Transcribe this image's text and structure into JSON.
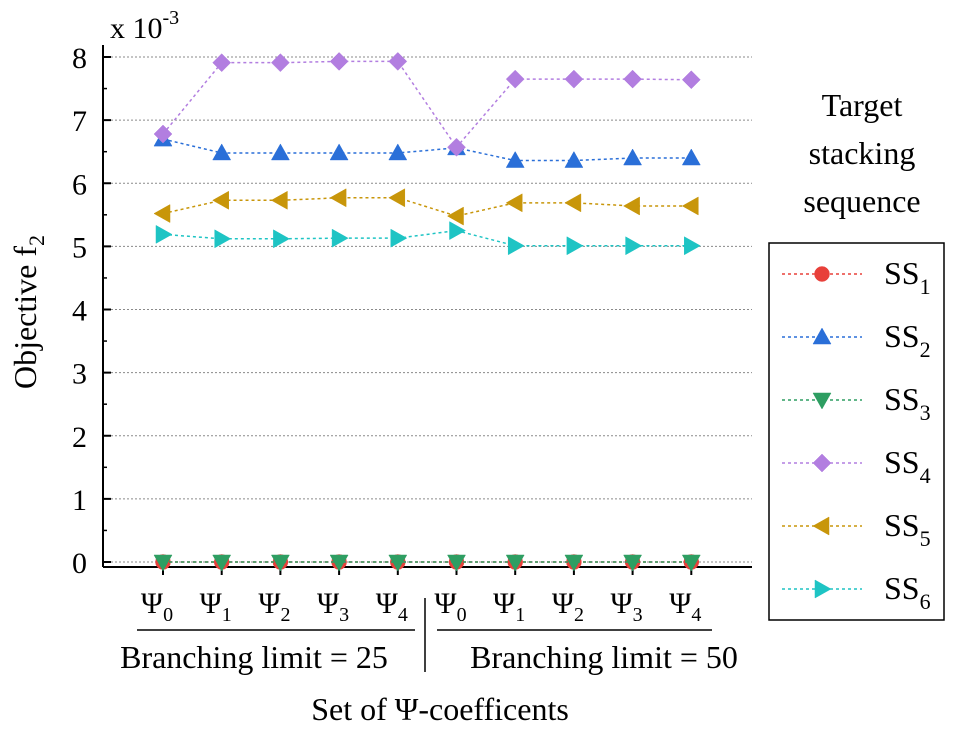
{
  "chart_data": {
    "type": "line",
    "scale_label": "x 10",
    "scale_exponent": "-3",
    "xlabel": "Set of Ψ-coefficents",
    "ylabel_main": "Objective f",
    "ylabel_sub": "2",
    "ylim": [
      0,
      8
    ],
    "yticks": [
      0,
      1,
      2,
      3,
      4,
      5,
      6,
      7,
      8
    ],
    "grid": "horizontal dotted",
    "categories": [
      {
        "base": "Ψ",
        "sub": "0"
      },
      {
        "base": "Ψ",
        "sub": "1"
      },
      {
        "base": "Ψ",
        "sub": "2"
      },
      {
        "base": "Ψ",
        "sub": "3"
      },
      {
        "base": "Ψ",
        "sub": "4"
      },
      {
        "base": "Ψ",
        "sub": "0"
      },
      {
        "base": "Ψ",
        "sub": "1"
      },
      {
        "base": "Ψ",
        "sub": "2"
      },
      {
        "base": "Ψ",
        "sub": "3"
      },
      {
        "base": "Ψ",
        "sub": "4"
      }
    ],
    "groups": [
      {
        "label": "Branching limit = 25"
      },
      {
        "label": "Branching limit = 50"
      }
    ],
    "legend_title": [
      "Target",
      "stacking",
      "sequence"
    ],
    "legend_position": "right",
    "series": [
      {
        "name": "SS",
        "sub": "1",
        "color": "#e8403a",
        "marker": "circle",
        "values": [
          0,
          0,
          0,
          0,
          0,
          0,
          0,
          0,
          0,
          0
        ]
      },
      {
        "name": "SS",
        "sub": "2",
        "color": "#2a6fd8",
        "marker": "triangle-up",
        "values": [
          6.7,
          6.48,
          6.48,
          6.48,
          6.48,
          6.56,
          6.36,
          6.36,
          6.4,
          6.4
        ]
      },
      {
        "name": "SS",
        "sub": "3",
        "color": "#2e9e62",
        "marker": "triangle-down",
        "values": [
          0,
          0,
          0,
          0,
          0,
          0,
          0,
          0,
          0,
          0
        ]
      },
      {
        "name": "SS",
        "sub": "4",
        "color": "#b27ee0",
        "marker": "diamond",
        "values": [
          6.78,
          7.91,
          7.91,
          7.93,
          7.93,
          6.57,
          7.65,
          7.65,
          7.65,
          7.64
        ]
      },
      {
        "name": "SS",
        "sub": "5",
        "color": "#c8960a",
        "marker": "triangle-left",
        "values": [
          5.52,
          5.73,
          5.73,
          5.77,
          5.77,
          5.48,
          5.69,
          5.69,
          5.64,
          5.64
        ]
      },
      {
        "name": "SS",
        "sub": "6",
        "color": "#1ec4c4",
        "marker": "triangle-right",
        "values": [
          5.19,
          5.12,
          5.12,
          5.13,
          5.13,
          5.25,
          5.01,
          5.01,
          5.01,
          5.01
        ]
      }
    ]
  }
}
